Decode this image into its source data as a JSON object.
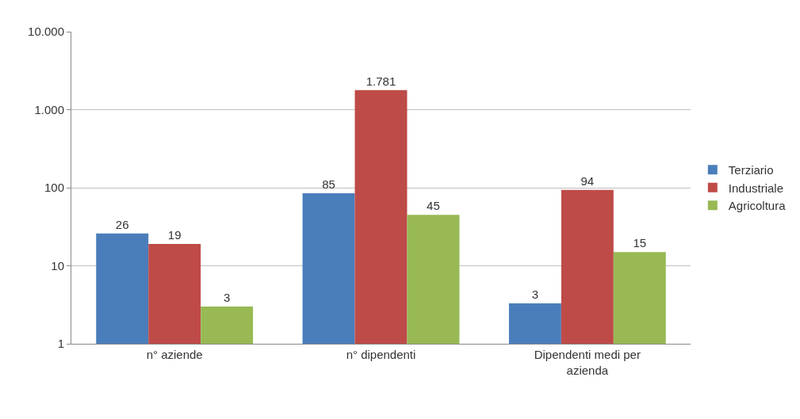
{
  "chart_data": {
    "type": "bar",
    "categories": [
      "n° aziende",
      "n° dipendenti",
      "Dipendenti medi per azienda"
    ],
    "series": [
      {
        "name": "Terziario",
        "color": "#4a7ebb",
        "values": [
          26,
          85,
          3.3
        ],
        "value_labels": [
          "26",
          "85",
          "3"
        ]
      },
      {
        "name": "Industriale",
        "color": "#be4b48",
        "values": [
          19,
          1781,
          94
        ],
        "value_labels": [
          "19",
          "1.781",
          "94"
        ]
      },
      {
        "name": "Agricoltura",
        "color": "#98b954",
        "values": [
          3,
          45,
          15
        ],
        "value_labels": [
          "3",
          "45",
          "15"
        ]
      }
    ],
    "log": "y",
    "ylim": [
      1,
      10000
    ],
    "yticks": [
      1,
      10,
      100,
      {
        "value": 1000,
        "label": "1.000"
      },
      {
        "value": 10000,
        "label": "10.000"
      }
    ],
    "grid": "y",
    "legend": "right"
  }
}
